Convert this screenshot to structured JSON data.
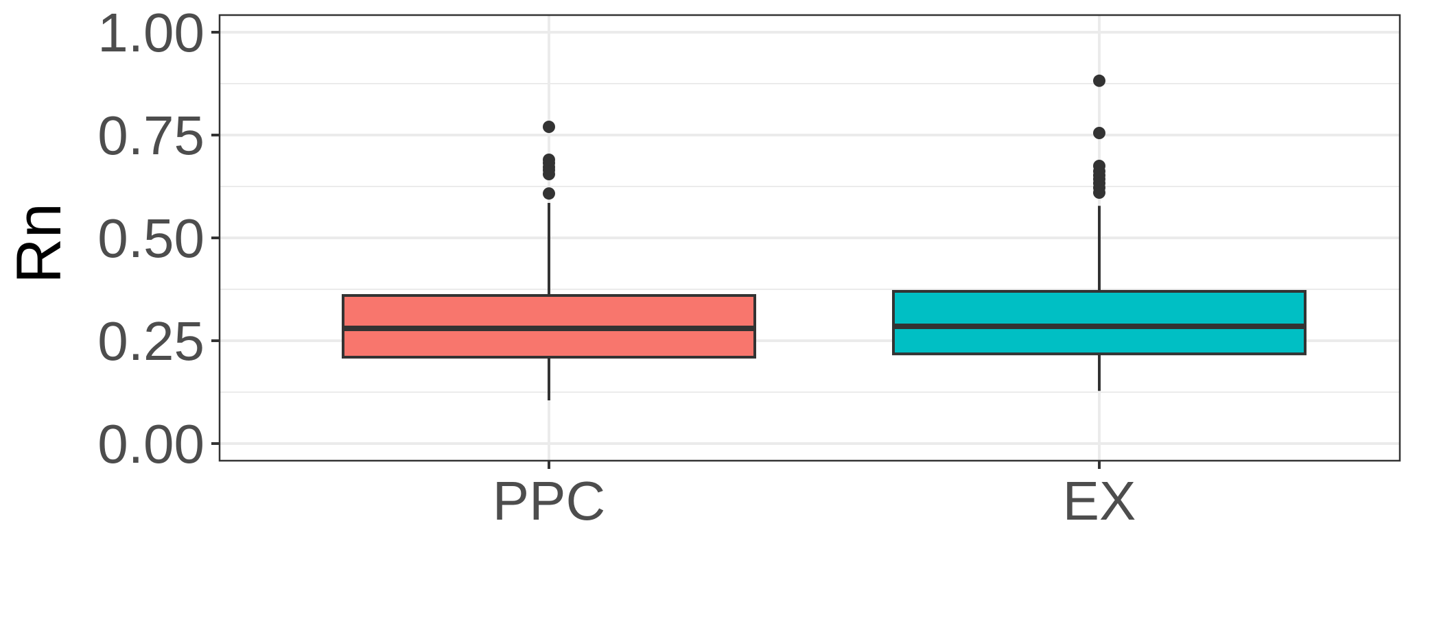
{
  "chart_data": {
    "type": "box",
    "title": "",
    "xlabel": "",
    "ylabel": "Rn",
    "ylim": [
      0,
      1
    ],
    "yticks": [
      "0.00",
      "0.25",
      "0.50",
      "0.75",
      "1.00"
    ],
    "ytick_values": [
      0,
      0.25,
      0.5,
      0.75,
      1.0
    ],
    "categories": [
      "PPC",
      "EX"
    ],
    "grid": true,
    "legend": "none",
    "boxes": [
      {
        "category": "PPC",
        "color": "#F8766D",
        "whisker_low": 0.105,
        "q1": 0.21,
        "median": 0.28,
        "q3": 0.36,
        "whisker_high": 0.585,
        "outliers": [
          0.608,
          0.655,
          0.665,
          0.672,
          0.682,
          0.69,
          0.77
        ]
      },
      {
        "category": "EX",
        "color": "#00BFC4",
        "whisker_low": 0.128,
        "q1": 0.218,
        "median": 0.285,
        "q3": 0.37,
        "whisker_high": 0.578,
        "outliers": [
          0.61,
          0.622,
          0.633,
          0.643,
          0.652,
          0.662,
          0.675,
          0.755,
          0.882
        ]
      }
    ]
  }
}
